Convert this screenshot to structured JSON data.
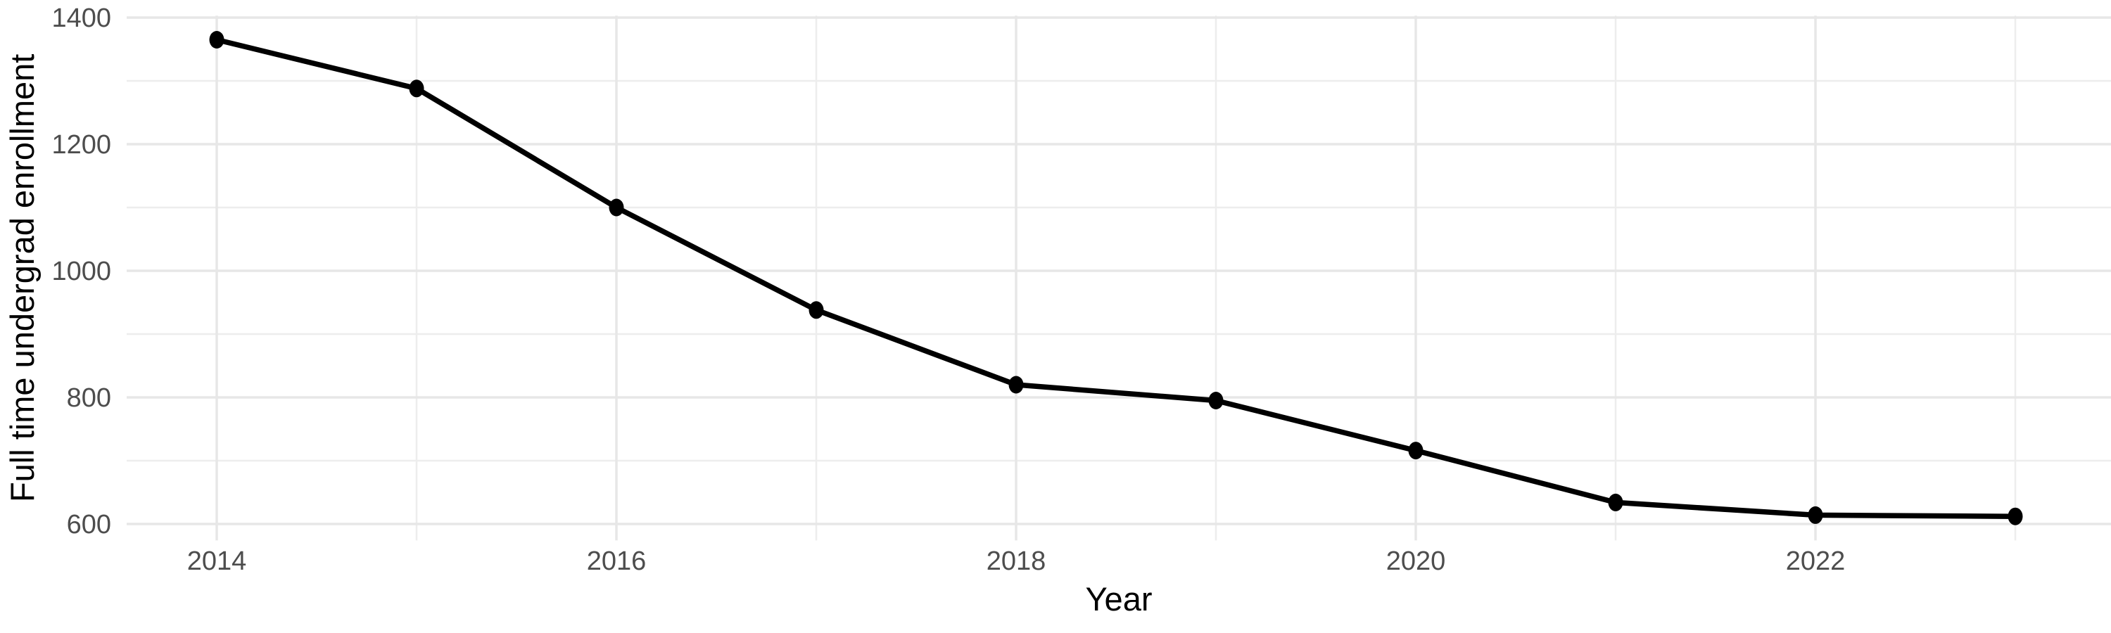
{
  "chart_data": {
    "type": "line",
    "title": "",
    "xlabel": "Year",
    "ylabel": "Full time undergrad enrollment",
    "x": [
      2014,
      2015,
      2016,
      2017,
      2018,
      2019,
      2020,
      2021,
      2022,
      2023
    ],
    "series": [
      {
        "name": "Full time undergrad enrollment",
        "values": [
          1365,
          1288,
          1100,
          938,
          820,
          795,
          716,
          634,
          614,
          612
        ]
      }
    ],
    "x_tick_labels": [
      "2014",
      "2016",
      "2018",
      "2020",
      "2022"
    ],
    "x_ticks": [
      2014,
      2016,
      2018,
      2020,
      2022
    ],
    "x_minor_gridlines": [
      2015,
      2017,
      2019,
      2021,
      2023
    ],
    "y_tick_labels": [
      "600",
      "800",
      "1000",
      "1200",
      "1400"
    ],
    "y_ticks": [
      600,
      800,
      1000,
      1200,
      1400
    ],
    "y_minor_gridlines": [
      700,
      900,
      1100,
      1300
    ],
    "ylim": [
      574,
      1403
    ],
    "xlim": [
      2013.55,
      2023.47
    ],
    "grid": "on",
    "legend": "none",
    "colors": {
      "background": "#ffffff",
      "panel_background": "#ffffff",
      "line": "#000000",
      "point": "#000000",
      "major_gridline": "#e7e7e7",
      "minor_gridline": "#ededed",
      "axis_tick_text": "#4d4d4d",
      "axis_title_text": "#000000"
    }
  }
}
